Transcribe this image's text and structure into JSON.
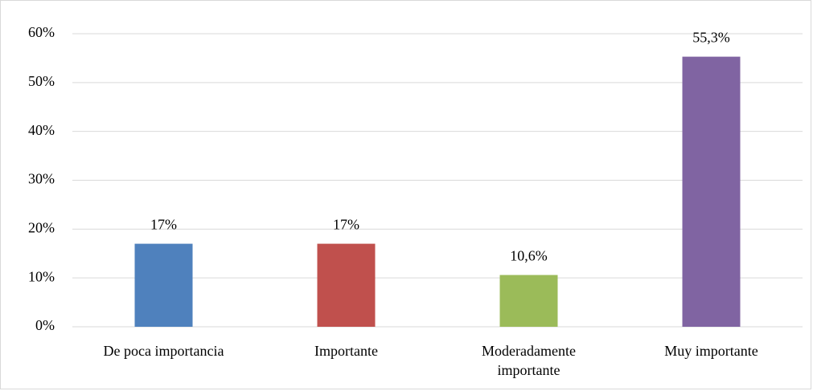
{
  "chart_data": {
    "type": "bar",
    "categories": [
      "De poca importancia",
      "Importante",
      "Moderadamente importante",
      "Muy importante"
    ],
    "values": [
      17,
      17,
      10.6,
      55.3
    ],
    "value_labels": [
      "17%",
      "17%",
      "10,6%",
      "55,3%"
    ],
    "colors": [
      "#4f81bd",
      "#c0504d",
      "#9bbb59",
      "#8064a2"
    ],
    "ylim": [
      0,
      60
    ],
    "yticks": [
      {
        "value": 0,
        "label": "0%"
      },
      {
        "value": 10,
        "label": "10%"
      },
      {
        "value": 20,
        "label": "20%"
      },
      {
        "value": 30,
        "label": "30%"
      },
      {
        "value": 40,
        "label": "40%"
      },
      {
        "value": 50,
        "label": "50%"
      },
      {
        "value": 60,
        "label": "60%"
      }
    ],
    "grid": true
  }
}
